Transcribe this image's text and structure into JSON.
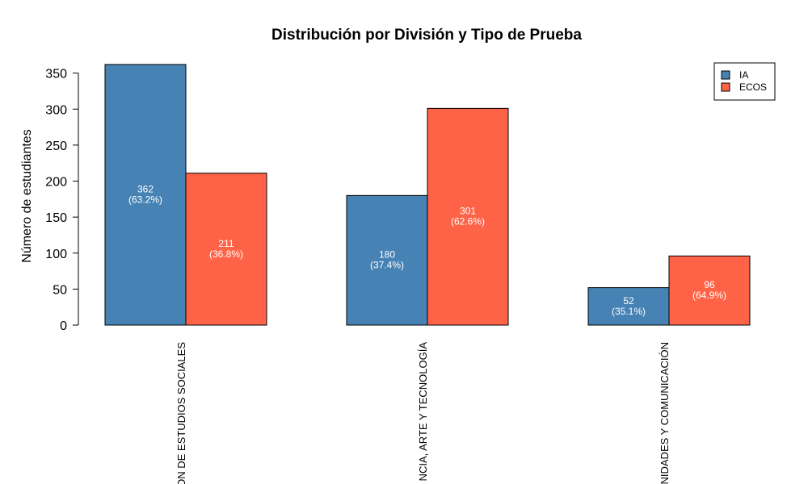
{
  "chart_data": {
    "type": "bar",
    "title": "Distribución por División y Tipo de Prueba",
    "ylabel": "Número de estudiantes",
    "xlabel": "",
    "ylim": [
      0,
      350
    ],
    "yticks": [
      0,
      50,
      100,
      150,
      200,
      250,
      300,
      350
    ],
    "categories": [
      "ON DE ESTUDIOS SOCIALES",
      "NCIA, ARTE Y TECNOLOGÍA",
      "NIDADES Y COMUNICACIÓN"
    ],
    "series": [
      {
        "name": "IA",
        "color": "#4682B4",
        "values": [
          362,
          180,
          52
        ],
        "value_labels": [
          "362",
          "180",
          "52"
        ],
        "pct_labels": [
          "(63.2%)",
          "(37.4%)",
          "(35.1%)"
        ]
      },
      {
        "name": "ECOS",
        "color": "#FF6347",
        "values": [
          211,
          301,
          96
        ],
        "value_labels": [
          "211",
          "301",
          "96"
        ],
        "pct_labels": [
          "(36.8%)",
          "(62.6%)",
          "(64.9%)"
        ]
      }
    ],
    "legend_position": "top-right",
    "grid": false
  }
}
